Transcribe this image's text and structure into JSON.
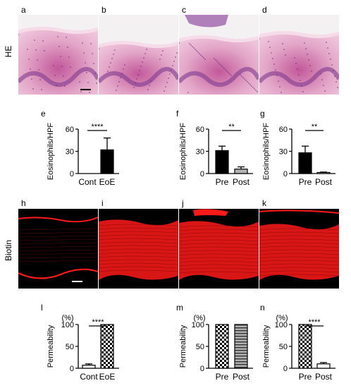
{
  "rows": {
    "he_label": "HE",
    "biotin_label": "Biotin"
  },
  "panels": {
    "he": [
      "a",
      "b",
      "c",
      "d"
    ],
    "charts_top": [
      "e",
      "f",
      "g"
    ],
    "biotin": [
      "h",
      "i",
      "j",
      "k"
    ],
    "charts_bottom": [
      "l",
      "m",
      "n"
    ]
  },
  "colors": {
    "he_pink": "#e8a9c6",
    "he_purple": "#7e3b8e",
    "he_bg": "#f4f1f3",
    "biotin_red": "#ff1a1a",
    "biotin_bg": "#000000",
    "bar_black": "#000000",
    "bar_gray": "#b0b0b0"
  },
  "chart_data": [
    {
      "panel": "e",
      "type": "bar",
      "ylabel": "Eosinophils/HPF",
      "yticks": [
        0,
        30,
        60
      ],
      "ylim": [
        0,
        60
      ],
      "categories": [
        "Cont",
        "EoE"
      ],
      "values": [
        0,
        32
      ],
      "errors": [
        0,
        16
      ],
      "fills": [
        "black",
        "black"
      ],
      "significance": "****"
    },
    {
      "panel": "f",
      "type": "bar",
      "ylabel": "Eosinophils/HPF",
      "yticks": [
        0,
        30,
        60
      ],
      "ylim": [
        0,
        60
      ],
      "categories": [
        "Pre",
        "Post"
      ],
      "values": [
        31,
        6
      ],
      "errors": [
        6,
        3
      ],
      "fills": [
        "black",
        "gray"
      ],
      "significance": "**"
    },
    {
      "panel": "g",
      "type": "bar",
      "ylabel": "Eosinophils/HPF",
      "yticks": [
        0,
        30,
        60
      ],
      "ylim": [
        0,
        60
      ],
      "categories": [
        "Pre",
        "Post"
      ],
      "values": [
        28,
        1
      ],
      "errors": [
        9,
        1
      ],
      "fills": [
        "black",
        "white"
      ],
      "significance": "**"
    },
    {
      "panel": "l",
      "type": "bar",
      "unit": "(%)",
      "ylabel": "Permeability",
      "yticks": [
        0,
        50,
        100
      ],
      "ylim": [
        0,
        100
      ],
      "categories": [
        "Cont",
        "EoE"
      ],
      "values": [
        7,
        100
      ],
      "errors": [
        3,
        0
      ],
      "fills": [
        "white",
        "checker"
      ],
      "significance": "****"
    },
    {
      "panel": "m",
      "type": "bar",
      "unit": "(%)",
      "ylabel": "Permeability",
      "yticks": [
        0,
        50,
        100
      ],
      "ylim": [
        0,
        100
      ],
      "categories": [
        "Pre",
        "Post"
      ],
      "values": [
        100,
        100
      ],
      "errors": [
        0,
        0
      ],
      "fills": [
        "checker",
        "stripes"
      ],
      "significance": ""
    },
    {
      "panel": "n",
      "type": "bar",
      "unit": "(%)",
      "ylabel": "Permeability",
      "yticks": [
        0,
        50,
        100
      ],
      "ylim": [
        0,
        100
      ],
      "categories": [
        "Pre",
        "Post"
      ],
      "values": [
        100,
        10
      ],
      "errors": [
        0,
        3
      ],
      "fills": [
        "checker",
        "white"
      ],
      "significance": "****"
    }
  ]
}
